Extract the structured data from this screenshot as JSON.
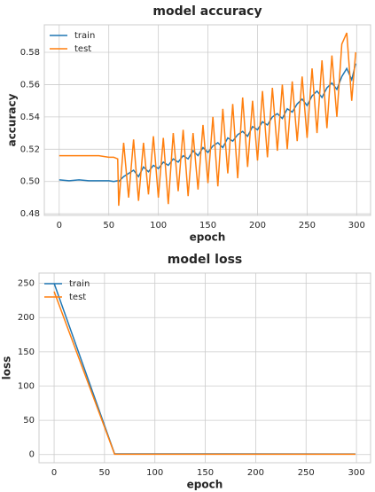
{
  "chart_data": [
    {
      "type": "line",
      "title": "model accuracy",
      "xlabel": "epoch",
      "ylabel": "accuracy",
      "x": [
        0,
        10,
        20,
        30,
        40,
        50,
        55,
        59,
        60,
        65,
        70,
        75,
        80,
        85,
        90,
        95,
        100,
        105,
        110,
        115,
        120,
        125,
        130,
        135,
        140,
        145,
        150,
        155,
        160,
        165,
        170,
        175,
        180,
        185,
        190,
        195,
        200,
        205,
        210,
        215,
        220,
        225,
        230,
        235,
        240,
        245,
        250,
        255,
        260,
        265,
        270,
        275,
        280,
        285,
        290,
        295,
        299
      ],
      "series": [
        {
          "name": "train",
          "color": "#1f77b4",
          "values": [
            0.501,
            0.5005,
            0.501,
            0.5005,
            0.5005,
            0.5005,
            0.5,
            0.5005,
            0.5,
            0.503,
            0.505,
            0.507,
            0.503,
            0.509,
            0.506,
            0.51,
            0.508,
            0.512,
            0.51,
            0.514,
            0.512,
            0.516,
            0.514,
            0.519,
            0.516,
            0.521,
            0.518,
            0.522,
            0.524,
            0.521,
            0.527,
            0.525,
            0.529,
            0.531,
            0.528,
            0.534,
            0.532,
            0.537,
            0.535,
            0.54,
            0.542,
            0.539,
            0.545,
            0.543,
            0.548,
            0.551,
            0.547,
            0.553,
            0.556,
            0.552,
            0.558,
            0.561,
            0.557,
            0.565,
            0.57,
            0.563,
            0.573
          ]
        },
        {
          "name": "test",
          "color": "#ff7f0e",
          "values": [
            0.516,
            0.516,
            0.516,
            0.516,
            0.516,
            0.515,
            0.515,
            0.514,
            0.485,
            0.524,
            0.49,
            0.526,
            0.488,
            0.524,
            0.492,
            0.528,
            0.49,
            0.527,
            0.486,
            0.53,
            0.494,
            0.532,
            0.491,
            0.53,
            0.495,
            0.535,
            0.499,
            0.54,
            0.497,
            0.545,
            0.505,
            0.548,
            0.502,
            0.552,
            0.509,
            0.55,
            0.513,
            0.556,
            0.515,
            0.558,
            0.519,
            0.56,
            0.52,
            0.562,
            0.525,
            0.565,
            0.527,
            0.57,
            0.53,
            0.575,
            0.533,
            0.578,
            0.54,
            0.585,
            0.592,
            0.55,
            0.58
          ]
        }
      ],
      "xlim": [
        -15,
        314
      ],
      "xticks": [
        0,
        50,
        100,
        150,
        200,
        250,
        300
      ],
      "ylim": [
        0.479,
        0.597
      ],
      "yticks": [
        0.48,
        {
          "value": 0.5,
          "label": "0.50"
        },
        0.52,
        0.54,
        0.56,
        0.58
      ],
      "grid": true,
      "legend": "upper left"
    },
    {
      "type": "line",
      "title": "model loss",
      "xlabel": "epoch",
      "ylabel": "loss",
      "x": [
        0,
        60,
        299
      ],
      "series": [
        {
          "name": "train",
          "color": "#1f77b4",
          "values": [
            250,
            1,
            0.8
          ]
        },
        {
          "name": "test",
          "color": "#ff7f0e",
          "values": [
            238,
            0.5,
            0.4
          ]
        }
      ],
      "xlim": [
        -15,
        314
      ],
      "xticks": [
        0,
        50,
        100,
        150,
        200,
        250,
        300
      ],
      "ylim": [
        -12,
        265
      ],
      "yticks": [
        0,
        50,
        100,
        150,
        200,
        250
      ],
      "grid": true,
      "legend": "upper left"
    }
  ]
}
